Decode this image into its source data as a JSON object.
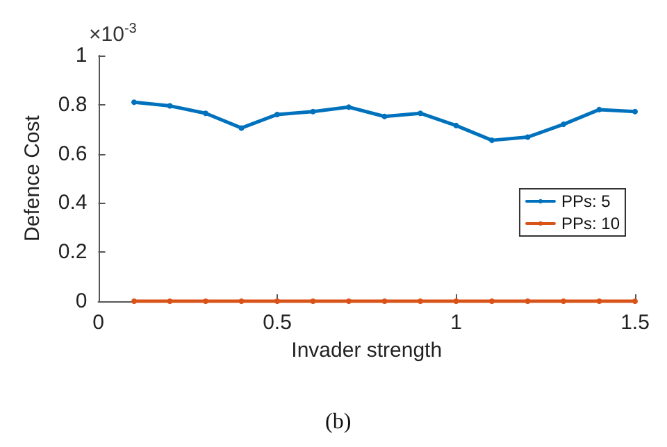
{
  "chart_data": {
    "type": "line",
    "xlabel": "Invader strength",
    "ylabel": "Defence Cost",
    "annotations": [
      "×10$^{-3}$",
      "(b)"
    ],
    "x": [
      0.1,
      0.2,
      0.3,
      0.4,
      0.5,
      0.6,
      0.7,
      0.8,
      0.9,
      1.0,
      1.1,
      1.2,
      1.3,
      1.4,
      1.5
    ],
    "series": [
      {
        "name": "PPs: 5",
        "color": "#0072bd",
        "values": [
          0.81,
          0.795,
          0.765,
          0.705,
          0.76,
          0.772,
          0.79,
          0.752,
          0.765,
          0.715,
          0.655,
          0.668,
          0.72,
          0.78,
          0.772
        ]
      },
      {
        "name": "PPs: 10",
        "color": "#d95319",
        "values": [
          0,
          0,
          0,
          0,
          0,
          0,
          0,
          0,
          0,
          0,
          0,
          0,
          0,
          0,
          0
        ]
      }
    ],
    "xlim": [
      0,
      1.5
    ],
    "xticks": [
      0,
      0.5,
      1,
      1.5
    ],
    "ylim": [
      0,
      1
    ],
    "yticks": [
      0,
      0.2,
      0.4,
      0.6,
      0.8,
      1
    ],
    "grid": false,
    "legend": "right",
    "marker": "circle",
    "line_style": "solid"
  }
}
